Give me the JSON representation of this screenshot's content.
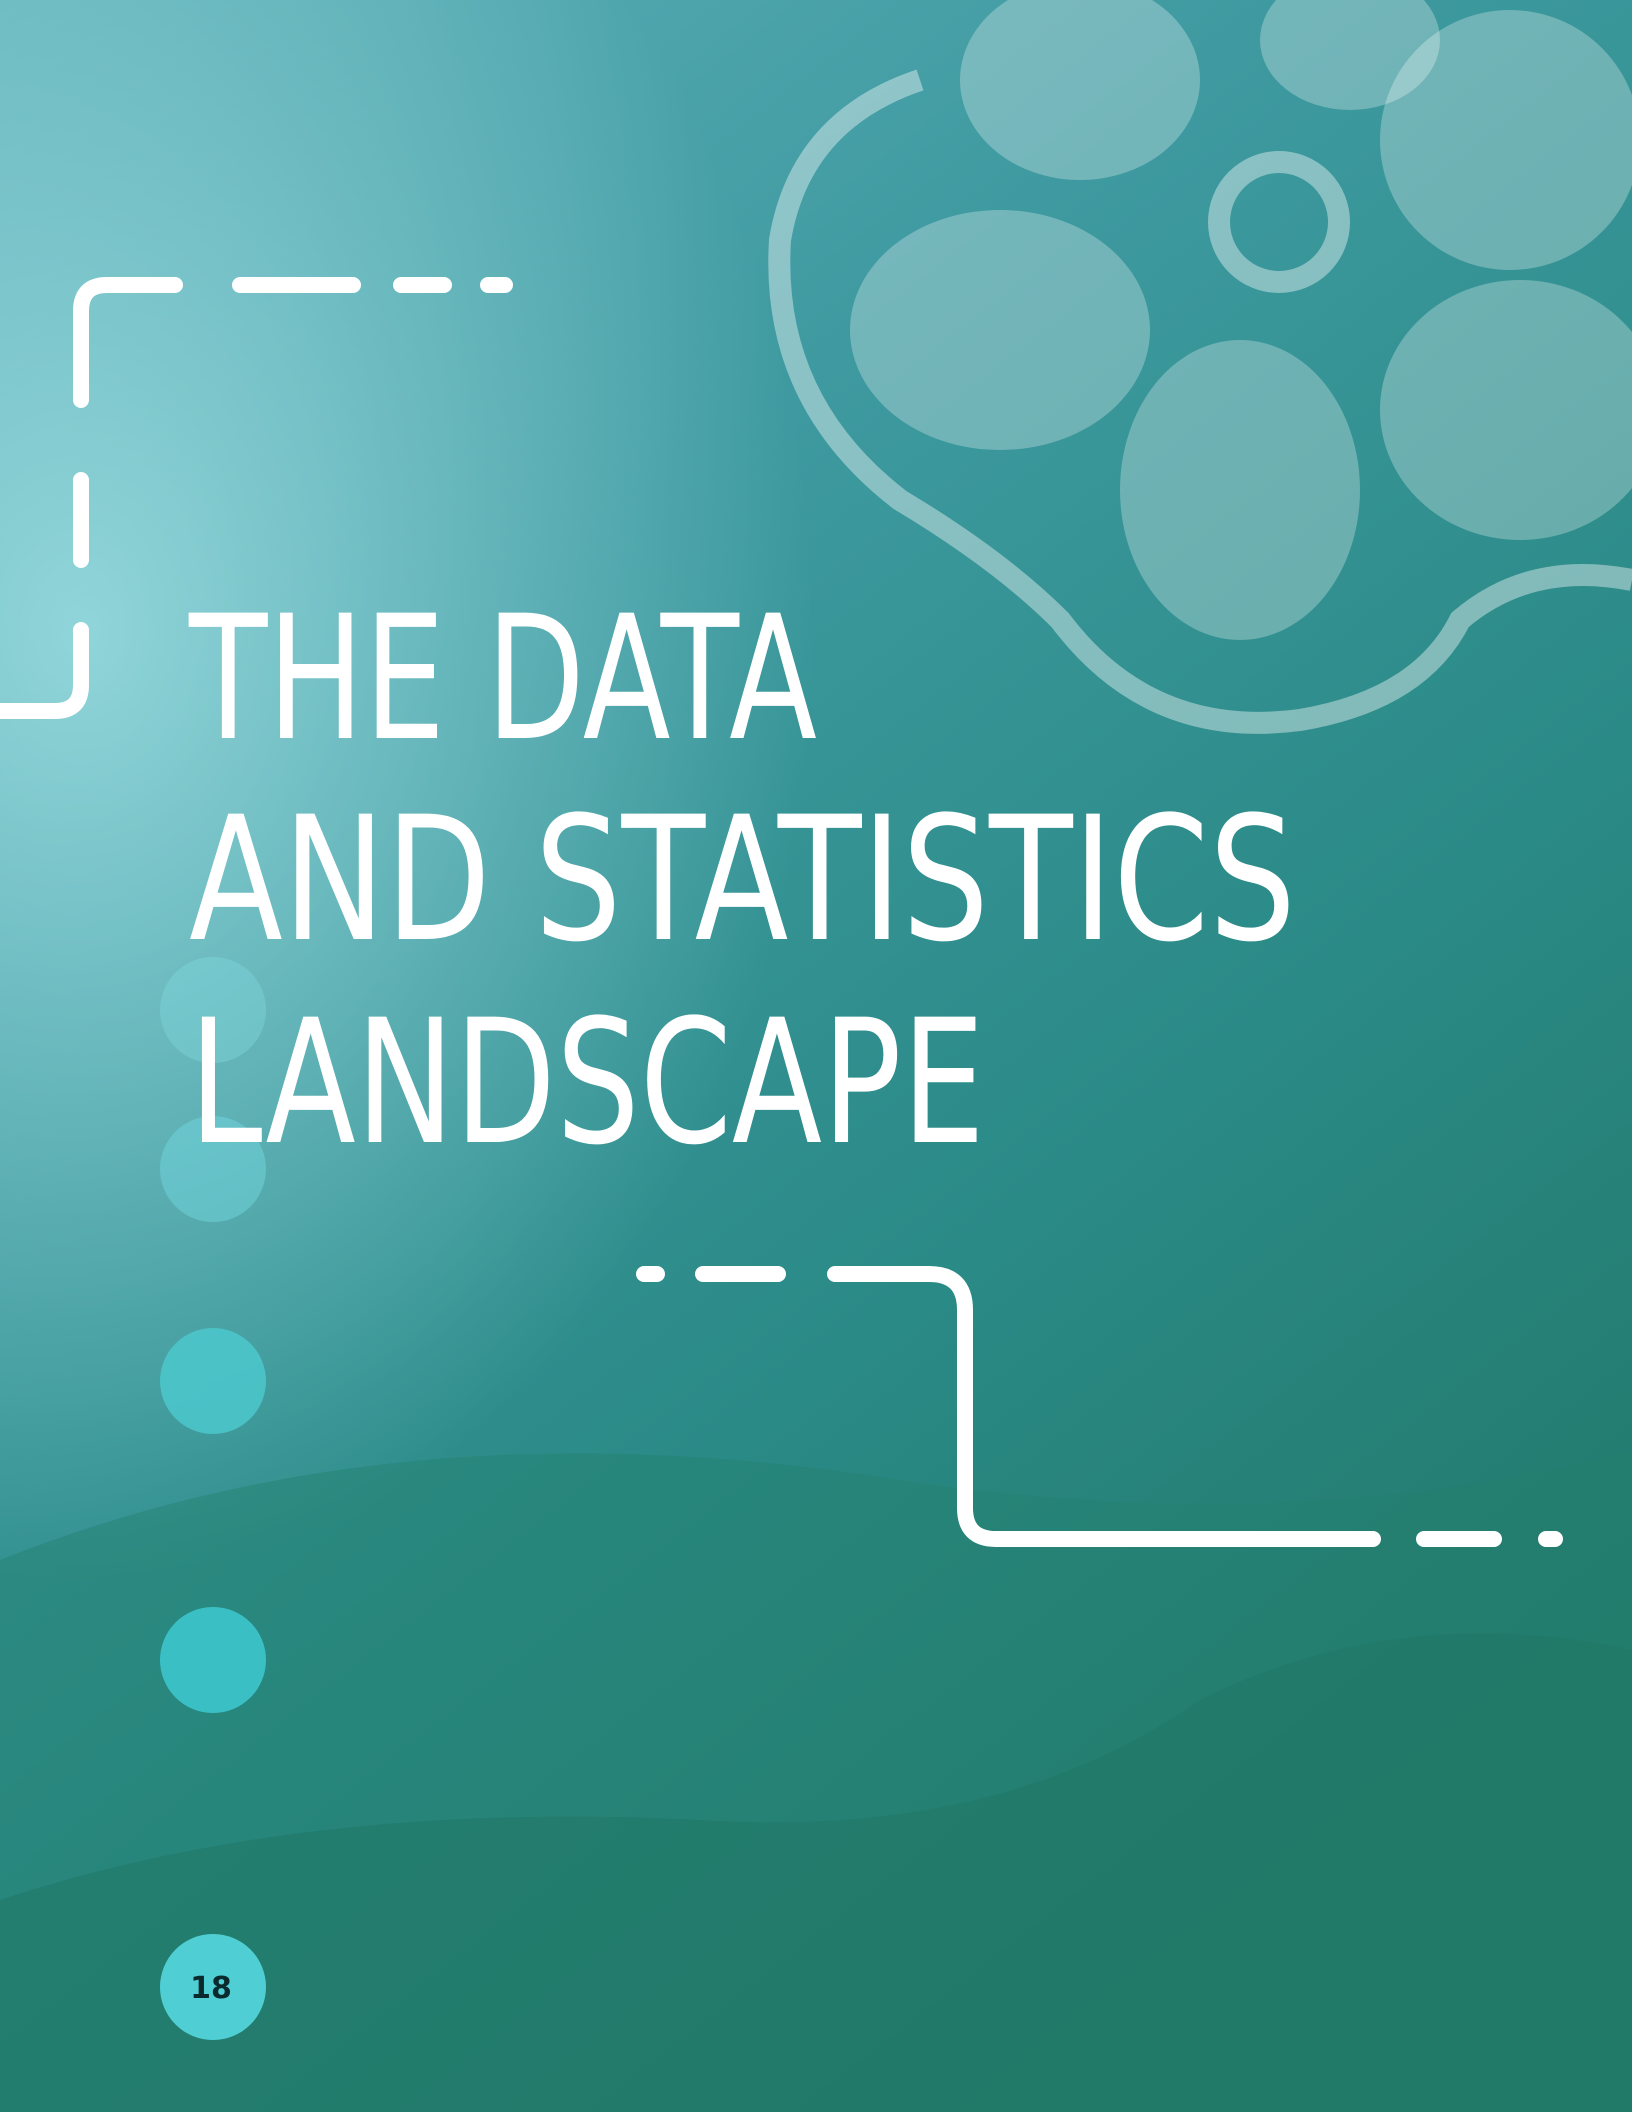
{
  "title": {
    "lines": [
      "THE DATA",
      "AND STATISTICS",
      "LANDSCAPE"
    ]
  },
  "page_number": "18"
}
